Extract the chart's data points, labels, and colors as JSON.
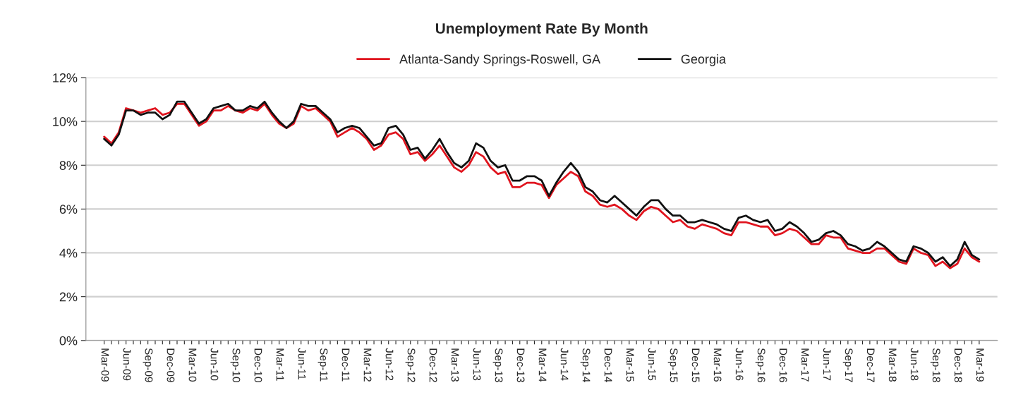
{
  "chart_data": {
    "type": "line",
    "title": "Unemployment Rate By Month",
    "categories": [
      "Mar-09",
      null,
      null,
      "Jun-09",
      null,
      null,
      "Sep-09",
      null,
      null,
      "Dec-09",
      null,
      null,
      "Mar-10",
      null,
      null,
      "Jun-10",
      null,
      null,
      "Sep-10",
      null,
      null,
      "Dec-10",
      null,
      null,
      "Mar-11",
      null,
      null,
      "Jun-11",
      null,
      null,
      "Sep-11",
      null,
      null,
      "Dec-11",
      null,
      null,
      "Mar-12",
      null,
      null,
      "Jun-12",
      null,
      null,
      "Sep-12",
      null,
      null,
      "Dec-12",
      null,
      null,
      "Mar-13",
      null,
      null,
      "Jun-13",
      null,
      null,
      "Sep-13",
      null,
      null,
      "Dec-13",
      null,
      null,
      "Mar-14",
      null,
      null,
      "Jun-14",
      null,
      null,
      "Sep-14",
      null,
      null,
      "Dec-14",
      null,
      null,
      "Mar-15",
      null,
      null,
      "Jun-15",
      null,
      null,
      "Sep-15",
      null,
      null,
      "Dec-15",
      null,
      null,
      "Mar-16",
      null,
      null,
      "Jun-16",
      null,
      null,
      "Sep-16",
      null,
      null,
      "Dec-16",
      null,
      null,
      "Mar-17",
      null,
      null,
      "Jun-17",
      null,
      null,
      "Sep-17",
      null,
      null,
      "Dec-17",
      null,
      null,
      "Mar-18",
      null,
      null,
      "Jun-18",
      null,
      null,
      "Sep-18",
      null,
      null,
      "Dec-18",
      null,
      null,
      "Mar-19"
    ],
    "series": [
      {
        "name": "Atlanta-Sandy Springs-Roswell, GA",
        "color": "#e0141e",
        "values": [
          9.3,
          9.0,
          9.5,
          10.6,
          10.5,
          10.4,
          10.5,
          10.6,
          10.3,
          10.4,
          10.8,
          10.8,
          10.3,
          9.8,
          10.0,
          10.5,
          10.5,
          10.7,
          10.5,
          10.4,
          10.6,
          10.5,
          10.8,
          10.3,
          9.9,
          9.7,
          9.9,
          10.7,
          10.5,
          10.6,
          10.3,
          10.0,
          9.3,
          9.5,
          9.7,
          9.5,
          9.2,
          8.7,
          8.9,
          9.4,
          9.5,
          9.2,
          8.5,
          8.6,
          8.2,
          8.5,
          8.9,
          8.4,
          7.9,
          7.7,
          8.0,
          8.6,
          8.4,
          7.9,
          7.6,
          7.7,
          7.0,
          7.0,
          7.2,
          7.2,
          7.1,
          6.5,
          7.1,
          7.4,
          7.7,
          7.5,
          6.8,
          6.6,
          6.2,
          6.1,
          6.2,
          6.0,
          5.7,
          5.5,
          5.9,
          6.1,
          6.0,
          5.7,
          5.4,
          5.5,
          5.2,
          5.1,
          5.3,
          5.2,
          5.1,
          4.9,
          4.8,
          5.4,
          5.4,
          5.3,
          5.2,
          5.2,
          4.8,
          4.9,
          5.1,
          5.0,
          4.7,
          4.4,
          4.4,
          4.8,
          4.7,
          4.7,
          4.2,
          4.1,
          4.0,
          4.0,
          4.2,
          4.2,
          3.9,
          3.6,
          3.5,
          4.2,
          4.0,
          3.9,
          3.4,
          3.6,
          3.3,
          3.5,
          4.2,
          3.8,
          3.6
        ]
      },
      {
        "name": "Georgia",
        "color": "#111111",
        "values": [
          9.2,
          8.9,
          9.4,
          10.5,
          10.5,
          10.3,
          10.4,
          10.4,
          10.1,
          10.3,
          10.9,
          10.9,
          10.4,
          9.9,
          10.1,
          10.6,
          10.7,
          10.8,
          10.5,
          10.5,
          10.7,
          10.6,
          10.9,
          10.4,
          10.0,
          9.7,
          10.0,
          10.8,
          10.7,
          10.7,
          10.4,
          10.1,
          9.5,
          9.7,
          9.8,
          9.7,
          9.3,
          8.9,
          9.0,
          9.7,
          9.8,
          9.4,
          8.7,
          8.8,
          8.3,
          8.7,
          9.2,
          8.6,
          8.1,
          7.9,
          8.2,
          9.0,
          8.8,
          8.2,
          7.9,
          8.0,
          7.3,
          7.3,
          7.5,
          7.5,
          7.3,
          6.6,
          7.2,
          7.7,
          8.1,
          7.7,
          7.0,
          6.8,
          6.4,
          6.3,
          6.6,
          6.3,
          6.0,
          5.7,
          6.1,
          6.4,
          6.4,
          6.0,
          5.7,
          5.7,
          5.4,
          5.4,
          5.5,
          5.4,
          5.3,
          5.1,
          5.0,
          5.6,
          5.7,
          5.5,
          5.4,
          5.5,
          5.0,
          5.1,
          5.4,
          5.2,
          4.9,
          4.5,
          4.6,
          4.9,
          5.0,
          4.8,
          4.4,
          4.3,
          4.1,
          4.2,
          4.5,
          4.3,
          4.0,
          3.7,
          3.6,
          4.3,
          4.2,
          4.0,
          3.6,
          3.8,
          3.4,
          3.7,
          4.5,
          3.9,
          3.7
        ]
      }
    ],
    "ylim": [
      0,
      12
    ],
    "yticks": [
      {
        "value": 0,
        "label": "0%"
      },
      {
        "value": 2,
        "label": "2%"
      },
      {
        "value": 4,
        "label": "4%"
      },
      {
        "value": 6,
        "label": "6%"
      },
      {
        "value": 8,
        "label": "8%"
      },
      {
        "value": 10,
        "label": "10%"
      },
      {
        "value": 12,
        "label": "12%"
      }
    ],
    "grid": "y",
    "legend": "top",
    "marker": "none",
    "line_style": "solid"
  }
}
